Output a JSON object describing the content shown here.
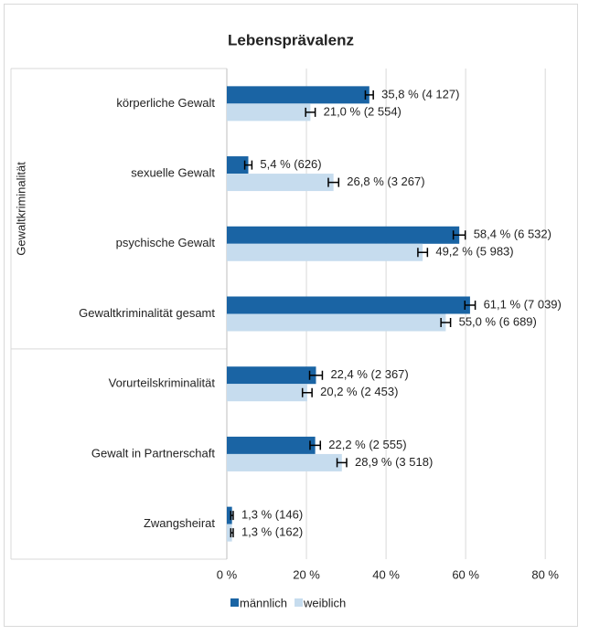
{
  "chart_data": {
    "type": "bar",
    "orientation": "horizontal",
    "title": "Lebensprävalenz",
    "group_label": "Gewaltkriminalität",
    "categories": [
      "körperliche Gewalt",
      "sexuelle Gewalt",
      "psychische Gewalt",
      "Gewaltkriminalität gesamt",
      "Vorurteilskriminalität",
      "Gewalt in Partnerschaft",
      "Zwangsheirat"
    ],
    "series": [
      {
        "name": "männlich",
        "color": "#1a64a4",
        "values": [
          35.8,
          5.4,
          58.4,
          61.1,
          22.4,
          22.2,
          1.3
        ],
        "errors": [
          1.0,
          0.9,
          1.5,
          1.3,
          1.6,
          1.3,
          0.3
        ],
        "value_labels": [
          "35,8 % (4 127)",
          "5,4 % (626)",
          "58,4 % (6 532)",
          "61,1 % (7 039)",
          "22,4 % (2 367)",
          "22,2 % (2 555)",
          "1,3 % (146)"
        ]
      },
      {
        "name": "weiblich",
        "color": "#c6dcee",
        "values": [
          21.0,
          26.8,
          49.2,
          55.0,
          20.2,
          28.9,
          1.3
        ],
        "errors": [
          1.2,
          1.3,
          1.2,
          1.2,
          1.2,
          1.2,
          0.3
        ],
        "value_labels": [
          "21,0 % (2 554)",
          "26,8 % (3 267)",
          "49,2 % (5 983)",
          "55,0 % (6 689)",
          "20,2 % (2 453)",
          "28,9 % (3 518)",
          "1,3 % (162)"
        ]
      }
    ],
    "xlim": [
      0,
      88
    ],
    "xticks": [
      {
        "value": 0,
        "label": "0 %"
      },
      {
        "value": 20,
        "label": "20 %"
      },
      {
        "value": 40,
        "label": "40 %"
      },
      {
        "value": 60,
        "label": "60 %"
      },
      {
        "value": 80,
        "label": "80 %"
      }
    ],
    "grid": true,
    "legend": "bottom"
  }
}
